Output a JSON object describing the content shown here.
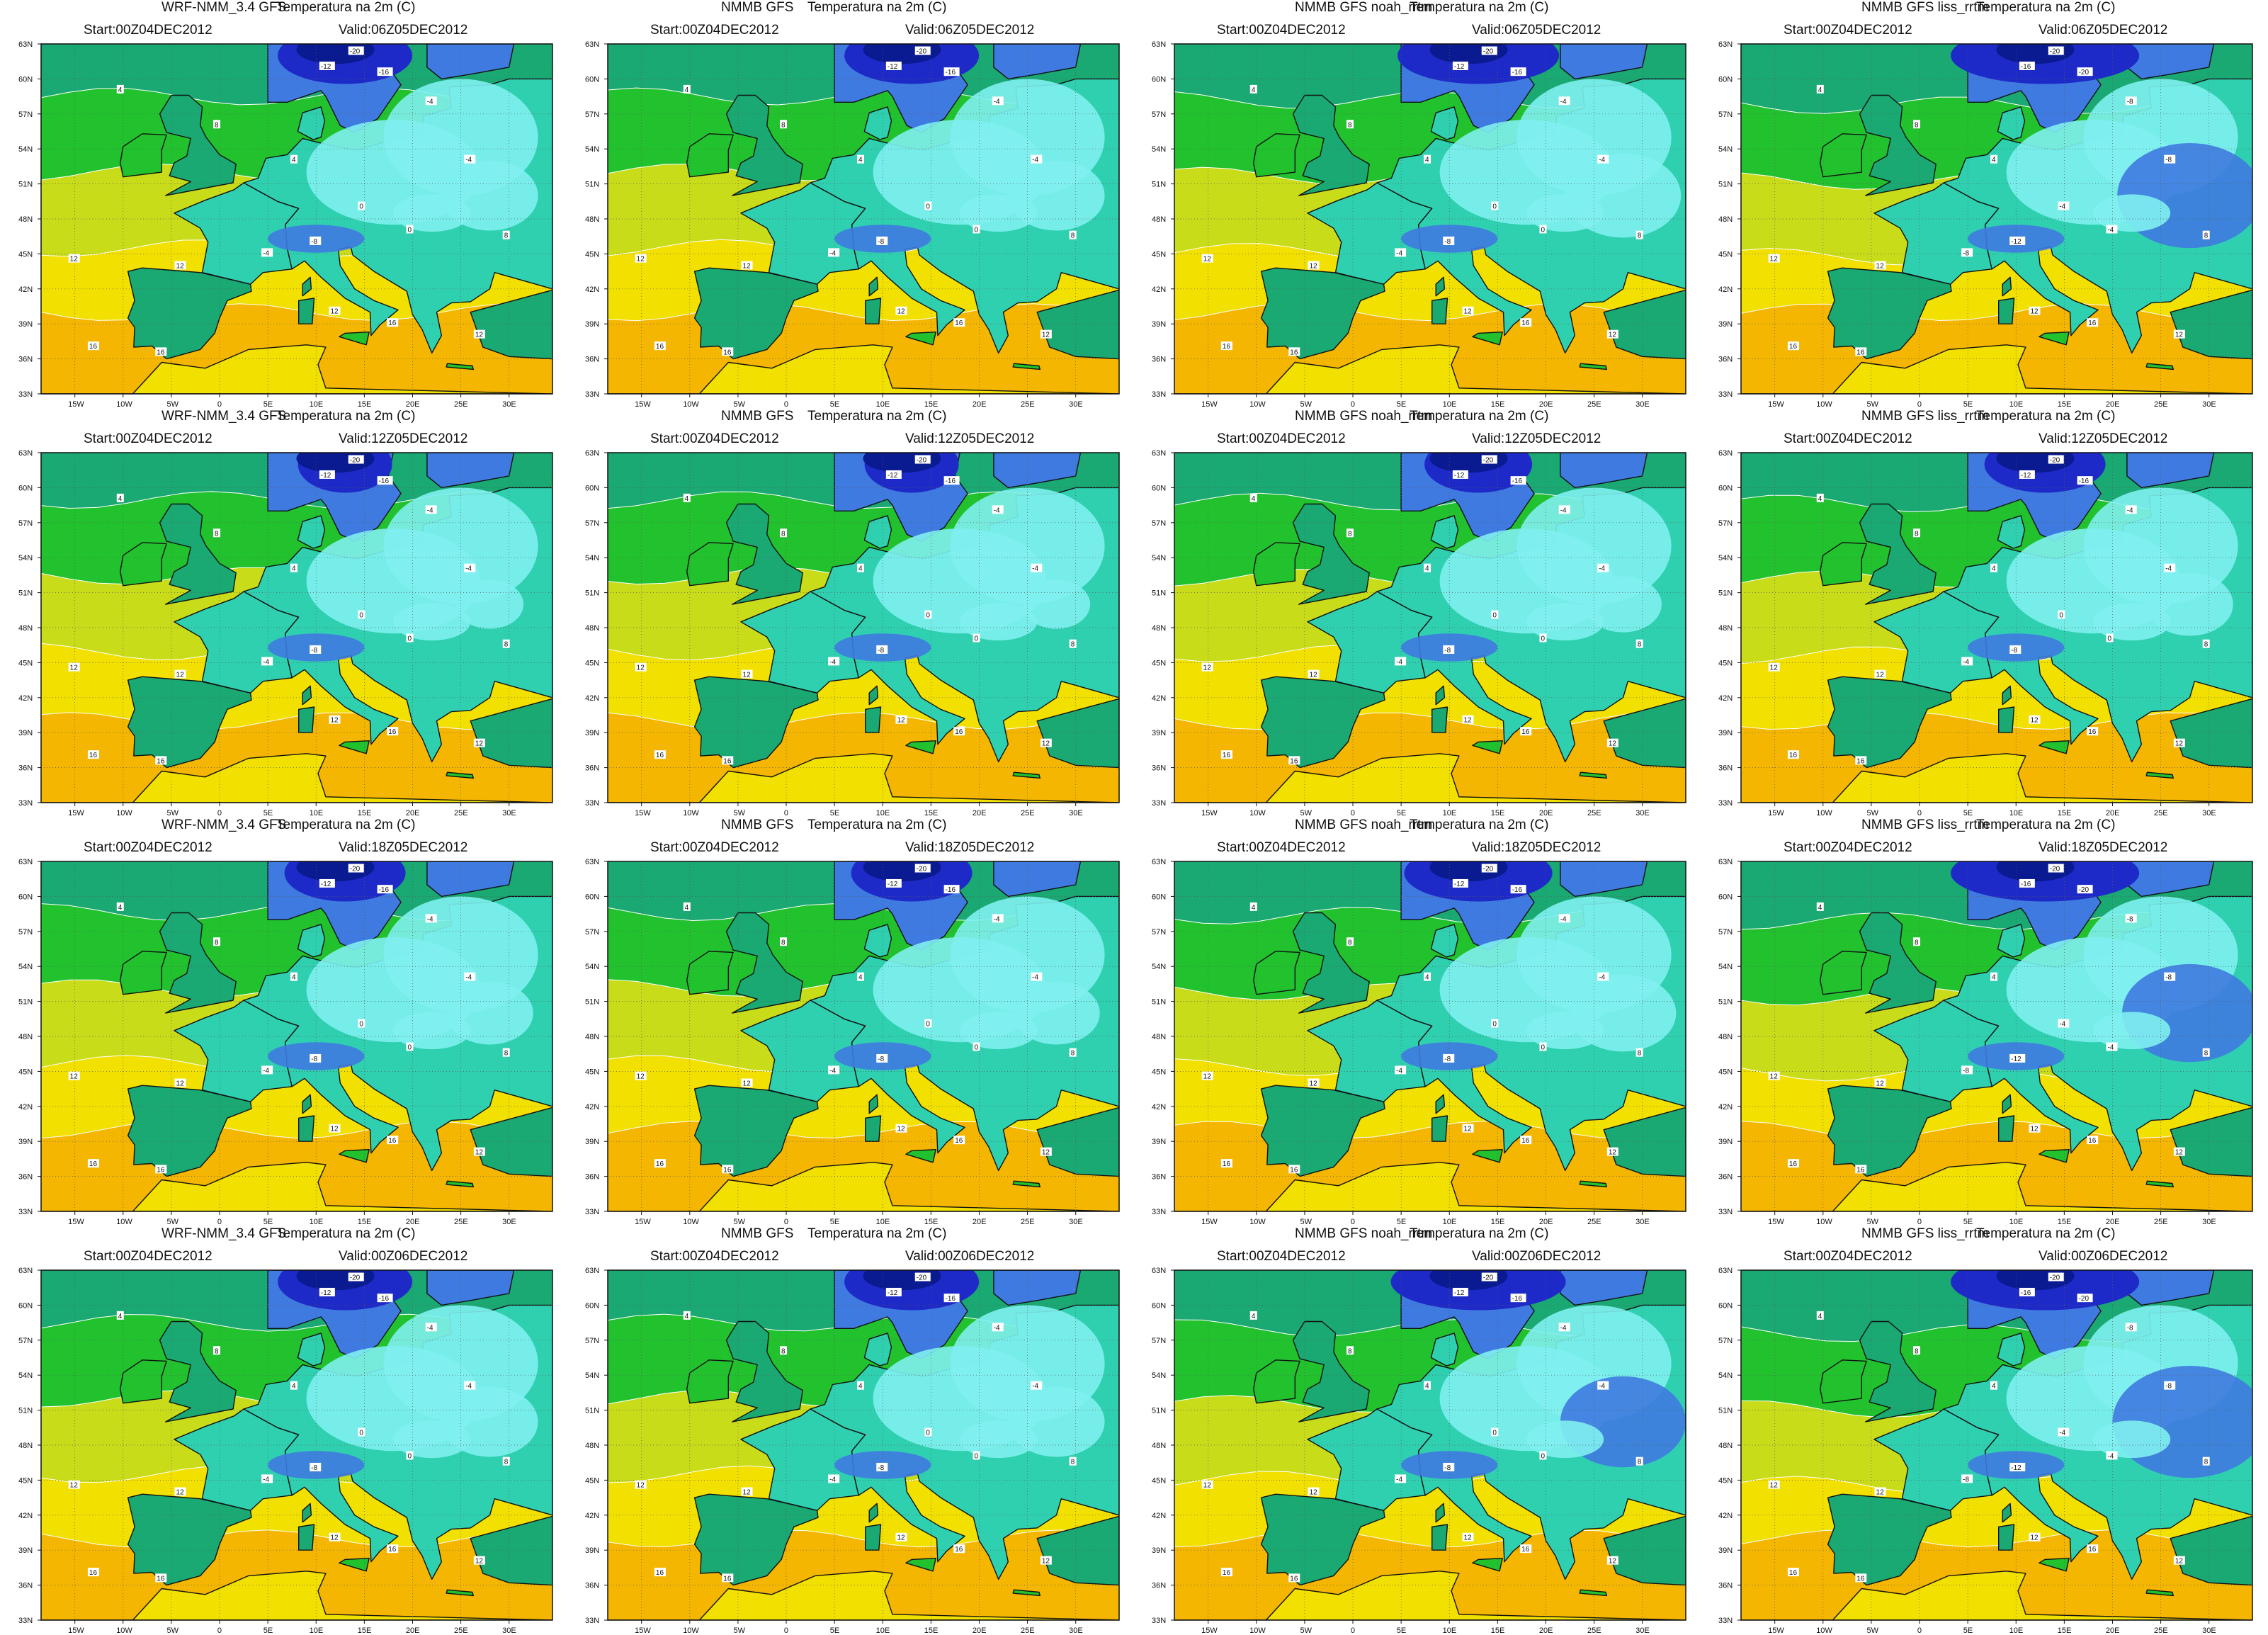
{
  "figure": {
    "variable_label": "Temperatura na 2m (C)",
    "start_label": "Start:00Z04DEC2012",
    "longitude_ticks": [
      "15W",
      "10W",
      "5W",
      "0",
      "5E",
      "10E",
      "15E",
      "20E",
      "25E",
      "30E"
    ],
    "latitude_ticks": [
      "63N",
      "60N",
      "57N",
      "54N",
      "51N",
      "48N",
      "45N",
      "42N",
      "39N",
      "36N",
      "33N"
    ],
    "models": [
      "WRF-NMM_3.4 GFS",
      "NMMB GFS",
      "NMMB GFS noah_rrtm",
      "NMMB GFS liss_rrtm"
    ],
    "valid_times": [
      "Valid:06Z05DEC2012",
      "Valid:12Z05DEC2012",
      "Valid:18Z05DEC2012",
      "Valid:00Z06DEC2012"
    ],
    "contour_labels": [
      "16",
      "12",
      "8",
      "4",
      "0",
      "-4",
      "-8",
      "-12",
      "-16",
      "-20"
    ],
    "colors": {
      "warm_orange": "#f4b600",
      "yellow": "#f2e000",
      "yellow_green": "#c8dc1a",
      "green": "#22c12e",
      "sea_green": "#1aa873",
      "teal": "#2fd0b0",
      "cyan": "#7ff0f0",
      "blue": "#3f7ae0",
      "dark_blue": "#1e2ac8",
      "navy": "#0a1a90",
      "coast": "#111111",
      "contour_white": "#ffffff"
    }
  },
  "panels": [
    {
      "row": 0,
      "col": 0,
      "model": "WRF-NMM_3.4 GFS",
      "start": "Start:00Z04DEC2012",
      "valid": "Valid:06Z05DEC2012",
      "variable": "Temperatura na 2m (C)",
      "coldness": 1.0
    },
    {
      "row": 0,
      "col": 1,
      "model": "NMMB GFS",
      "start": "Start:00Z04DEC2012",
      "valid": "Valid:06Z05DEC2012",
      "variable": "Temperatura na 2m (C)",
      "coldness": 1.0
    },
    {
      "row": 0,
      "col": 2,
      "model": "NMMB GFS noah_rrtm",
      "start": "Start:00Z04DEC2012",
      "valid": "Valid:06Z05DEC2012",
      "variable": "Temperatura na 2m (C)",
      "coldness": 1.2
    },
    {
      "row": 0,
      "col": 3,
      "model": "NMMB GFS liss_rrtm",
      "start": "Start:00Z04DEC2012",
      "valid": "Valid:06Z05DEC2012",
      "variable": "Temperatura na 2m (C)",
      "coldness": 1.5
    },
    {
      "row": 1,
      "col": 0,
      "model": "WRF-NMM_3.4 GFS",
      "start": "Start:00Z04DEC2012",
      "valid": "Valid:12Z05DEC2012",
      "variable": "Temperatura na 2m (C)",
      "coldness": 0.7
    },
    {
      "row": 1,
      "col": 1,
      "model": "NMMB GFS",
      "start": "Start:00Z04DEC2012",
      "valid": "Valid:12Z05DEC2012",
      "variable": "Temperatura na 2m (C)",
      "coldness": 0.7
    },
    {
      "row": 1,
      "col": 2,
      "model": "NMMB GFS noah_rrtm",
      "start": "Start:00Z04DEC2012",
      "valid": "Valid:12Z05DEC2012",
      "variable": "Temperatura na 2m (C)",
      "coldness": 0.8
    },
    {
      "row": 1,
      "col": 3,
      "model": "NMMB GFS liss_rrtm",
      "start": "Start:00Z04DEC2012",
      "valid": "Valid:12Z05DEC2012",
      "variable": "Temperatura na 2m (C)",
      "coldness": 0.9
    },
    {
      "row": 2,
      "col": 0,
      "model": "WRF-NMM_3.4 GFS",
      "start": "Start:00Z04DEC2012",
      "valid": "Valid:18Z05DEC2012",
      "variable": "Temperatura na 2m (C)",
      "coldness": 0.9
    },
    {
      "row": 2,
      "col": 1,
      "model": "NMMB GFS",
      "start": "Start:00Z04DEC2012",
      "valid": "Valid:18Z05DEC2012",
      "variable": "Temperatura na 2m (C)",
      "coldness": 0.9
    },
    {
      "row": 2,
      "col": 2,
      "model": "NMMB GFS noah_rrtm",
      "start": "Start:00Z04DEC2012",
      "valid": "Valid:18Z05DEC2012",
      "variable": "Temperatura na 2m (C)",
      "coldness": 1.1
    },
    {
      "row": 2,
      "col": 3,
      "model": "NMMB GFS liss_rrtm",
      "start": "Start:00Z04DEC2012",
      "valid": "Valid:18Z05DEC2012",
      "variable": "Temperatura na 2m (C)",
      "coldness": 1.4
    },
    {
      "row": 3,
      "col": 0,
      "model": "WRF-NMM_3.4 GFS",
      "start": "Start:00Z04DEC2012",
      "valid": "Valid:00Z06DEC2012",
      "variable": "Temperatura na 2m (C)",
      "coldness": 1.0
    },
    {
      "row": 3,
      "col": 1,
      "model": "NMMB GFS",
      "start": "Start:00Z04DEC2012",
      "valid": "Valid:00Z06DEC2012",
      "variable": "Temperatura na 2m (C)",
      "coldness": 1.0
    },
    {
      "row": 3,
      "col": 2,
      "model": "NMMB GFS noah_rrtm",
      "start": "Start:00Z04DEC2012",
      "valid": "Valid:00Z06DEC2012",
      "variable": "Temperatura na 2m (C)",
      "coldness": 1.3
    },
    {
      "row": 3,
      "col": 3,
      "model": "NMMB GFS liss_rrtm",
      "start": "Start:00Z04DEC2012",
      "valid": "Valid:00Z06DEC2012",
      "variable": "Temperatura na 2m (C)",
      "coldness": 1.6
    }
  ]
}
